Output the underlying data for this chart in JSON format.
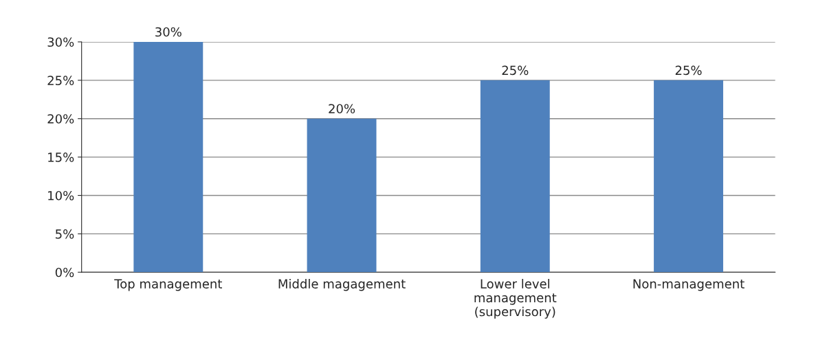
{
  "chart_data": {
    "type": "bar",
    "categories": [
      "Top management",
      "Middle magagement",
      "Lower level\nmanagement\n(supervisory)",
      "Non-management"
    ],
    "values": [
      30,
      20,
      25,
      25
    ],
    "color": "#4f81bd",
    "value_labels": [
      "30%",
      "20%",
      "25%",
      "25%"
    ],
    "ylim": [
      0,
      30
    ],
    "yticks": [
      {
        "value": 0,
        "label": "0%"
      },
      {
        "value": 5,
        "label": "5%"
      },
      {
        "value": 10,
        "label": "10%"
      },
      {
        "value": 15,
        "label": "15%"
      },
      {
        "value": 20,
        "label": "20%"
      },
      {
        "value": 25,
        "label": "25%"
      },
      {
        "value": 30,
        "label": "30%"
      }
    ],
    "grid": "y",
    "legend": false
  }
}
